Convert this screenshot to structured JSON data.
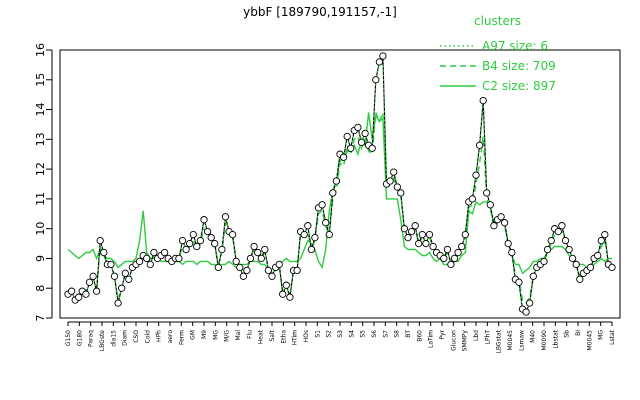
{
  "chart_data": {
    "type": "line",
    "title": "ybbF [189790,191157,-1]",
    "ylim": [
      7,
      16
    ],
    "yticks": [
      7,
      8,
      9,
      10,
      11,
      12,
      13,
      14,
      15,
      16
    ],
    "x_tick_labels": [
      "G150",
      "G180",
      "Paraq",
      "LBGste",
      "dla15",
      "Diam",
      "CSO",
      "Cold",
      "HPh",
      "aero",
      "Ferm",
      "GM",
      "M9",
      "MG",
      "M/G",
      "Mal",
      "Flu",
      "Heat",
      "Salt",
      "Etha",
      "HTim",
      "HOs",
      "S1",
      "S2",
      "S3",
      "S4",
      "S5",
      "S6",
      "S7",
      "S8",
      "BT",
      "B60",
      "LaTim",
      "Pyr",
      "Glucon",
      "SMMPy",
      "Lbd",
      "LPhT",
      "LBGstat",
      "M0045",
      "Lsmaw",
      "M40",
      "M0090",
      "Lbstat",
      "Sb",
      "BI",
      "M0045",
      "MG",
      "Lstat"
    ],
    "legend": {
      "title": "clusters",
      "entries": [
        {
          "label": "A97 size: 6",
          "style": "dotted"
        },
        {
          "label": "B4 size: 709",
          "style": "dashed"
        },
        {
          "label": "C2 size: 897",
          "style": "solid"
        }
      ]
    },
    "series": [
      {
        "name": "A97 size: 6",
        "values": [
          7.8,
          7.9,
          7.6,
          7.7,
          7.9,
          7.8,
          8.2,
          8.4,
          7.9,
          9.6,
          9.2,
          8.8,
          8.8,
          8.4,
          7.5,
          8.0,
          8.5,
          8.3,
          8.7,
          8.8,
          8.9,
          9.1,
          9.0,
          8.8,
          9.2,
          9.0,
          9.1,
          9.2,
          9.0,
          8.9,
          9.0,
          9.0,
          9.6,
          9.3,
          9.5,
          9.8,
          9.4,
          9.6,
          10.3,
          9.9,
          9.7,
          9.5,
          8.7,
          9.3,
          10.4,
          9.9,
          9.8,
          8.9,
          8.7,
          8.4,
          8.6,
          9.0,
          9.4,
          9.2,
          9.0,
          9.3,
          8.6,
          8.4,
          8.7,
          8.8,
          7.8,
          8.1,
          7.7,
          8.6,
          8.6,
          9.9,
          9.8,
          10.1,
          9.3,
          9.7,
          10.7,
          10.8,
          10.2,
          9.8,
          11.2,
          11.6,
          12.5,
          12.4,
          13.1,
          12.7,
          13.3,
          13.4,
          12.9,
          13.2,
          12.8,
          12.7,
          15.0,
          15.6,
          15.8,
          11.5,
          11.6,
          11.9,
          11.4,
          11.2,
          10.0,
          9.7,
          9.9,
          10.1,
          9.5,
          9.8,
          9.5,
          9.8,
          9.4,
          9.2,
          9.1,
          9.0,
          9.3,
          8.8,
          9.0,
          9.2,
          9.4,
          9.8,
          10.9,
          11.0,
          11.8,
          12.8,
          14.3,
          11.2,
          10.8,
          10.1,
          10.3,
          10.4,
          10.2,
          9.5,
          9.2,
          8.3,
          8.2,
          7.3,
          7.2,
          7.5,
          8.4,
          8.7,
          8.8,
          8.9,
          9.3,
          9.6,
          10.0,
          9.9,
          10.1,
          9.6,
          9.3,
          9.0,
          8.8,
          8.3,
          8.5,
          8.6,
          8.7,
          9.0,
          9.1,
          9.6,
          9.8,
          8.8,
          8.7
        ]
      },
      {
        "name": "B4 size: 709",
        "values": [
          7.9,
          7.9,
          7.7,
          7.8,
          7.9,
          7.9,
          8.2,
          8.4,
          7.9,
          9.4,
          9.1,
          8.8,
          8.8,
          8.4,
          7.6,
          8.0,
          8.5,
          8.3,
          8.7,
          8.8,
          8.9,
          9.0,
          9.0,
          8.9,
          9.1,
          9.0,
          9.0,
          9.1,
          9.0,
          8.9,
          9.0,
          9.0,
          9.4,
          9.2,
          9.4,
          9.6,
          9.3,
          9.5,
          10.0,
          9.8,
          9.6,
          9.5,
          8.8,
          9.2,
          10.2,
          9.8,
          9.7,
          8.9,
          8.8,
          8.5,
          8.6,
          9.0,
          9.3,
          9.1,
          9.0,
          9.2,
          8.7,
          8.5,
          8.7,
          8.8,
          7.9,
          8.1,
          7.8,
          8.6,
          8.6,
          9.8,
          9.7,
          9.9,
          9.3,
          9.6,
          10.5,
          10.6,
          10.1,
          9.8,
          11.0,
          11.3,
          12.2,
          12.1,
          12.8,
          12.5,
          13.0,
          13.1,
          12.7,
          13.0,
          12.6,
          12.5,
          13.9,
          13.6,
          13.9,
          11.3,
          11.5,
          11.7,
          11.3,
          11.1,
          10.0,
          9.7,
          9.9,
          10.0,
          9.5,
          9.7,
          9.5,
          9.7,
          9.4,
          9.2,
          9.1,
          9.0,
          9.2,
          8.9,
          9.0,
          9.1,
          9.3,
          9.6,
          10.7,
          10.8,
          11.5,
          12.2,
          13.1,
          11.0,
          10.7,
          10.0,
          10.2,
          10.3,
          10.1,
          9.5,
          9.2,
          8.4,
          8.3,
          7.6,
          7.5,
          7.7,
          8.4,
          8.7,
          8.8,
          8.9,
          9.2,
          9.5,
          9.8,
          9.8,
          9.9,
          9.5,
          9.2,
          9.0,
          8.8,
          8.4,
          8.5,
          8.6,
          8.7,
          9.0,
          9.0,
          9.4,
          9.6,
          8.9,
          8.8
        ]
      },
      {
        "name": "C2 size: 897",
        "values": [
          9.3,
          9.2,
          9.1,
          9.0,
          9.1,
          9.2,
          9.2,
          9.3,
          9.0,
          9.3,
          9.1,
          9.0,
          9.0,
          8.9,
          8.7,
          8.8,
          8.9,
          8.9,
          8.9,
          9.0,
          9.6,
          10.6,
          9.2,
          9.0,
          9.0,
          9.0,
          8.9,
          8.9,
          8.9,
          8.9,
          8.9,
          8.9,
          8.8,
          8.9,
          8.9,
          8.9,
          8.8,
          8.9,
          8.9,
          8.9,
          8.8,
          8.8,
          8.7,
          8.8,
          8.8,
          8.9,
          8.8,
          8.7,
          8.8,
          8.8,
          8.8,
          8.9,
          8.9,
          8.9,
          8.8,
          8.8,
          8.6,
          8.5,
          8.6,
          8.8,
          8.9,
          9.0,
          8.9,
          8.9,
          8.9,
          9.0,
          9.3,
          9.6,
          9.5,
          9.3,
          8.9,
          8.7,
          9.3,
          10.6,
          11.3,
          11.6,
          12.3,
          12.3,
          12.6,
          12.6,
          12.8,
          12.5,
          13.0,
          12.8,
          13.9,
          13.0,
          13.8,
          13.6,
          13.7,
          11.0,
          11.0,
          11.0,
          11.0,
          10.3,
          9.4,
          9.3,
          9.3,
          9.3,
          9.2,
          9.1,
          9.1,
          9.2,
          9.0,
          8.9,
          9.0,
          8.8,
          8.8,
          8.8,
          8.9,
          8.9,
          9.1,
          9.2,
          10.6,
          10.5,
          10.9,
          10.8,
          10.9,
          10.9,
          10.7,
          10.2,
          10.3,
          10.3,
          10.2,
          9.5,
          9.1,
          8.8,
          8.8,
          8.5,
          8.6,
          8.7,
          8.9,
          8.9,
          9.0,
          9.0,
          9.2,
          9.3,
          9.4,
          9.4,
          9.4,
          9.3,
          9.1,
          9.0,
          8.9,
          8.8,
          8.8,
          8.7,
          8.7,
          8.8,
          8.9,
          9.0,
          8.9,
          9.0,
          9.0
        ]
      }
    ]
  }
}
